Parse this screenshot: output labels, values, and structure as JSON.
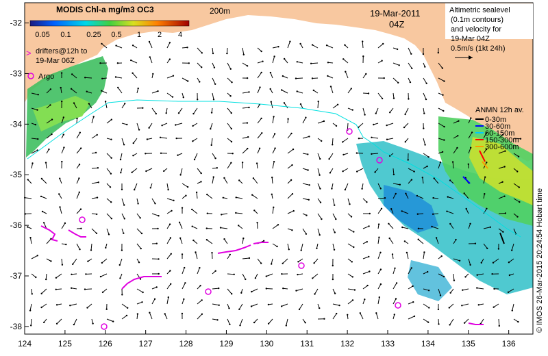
{
  "colorbar": {
    "title": "MODIS Chl-a mg/m3 OC3",
    "ticks": [
      "0.05",
      "0.1",
      "0.25",
      "0.5",
      "1",
      "2",
      "4"
    ]
  },
  "contour_label": "200m",
  "timestamp": {
    "date": "19-Mar-2011",
    "hour": "04Z"
  },
  "legend_altimetry": {
    "lines": [
      "Altimetric sealevel",
      "(0.1m contours)",
      "and velocity for",
      "19-Mar 04Z"
    ],
    "scale_label": "0.5m/s (1kt 24h)"
  },
  "legend_drifters": {
    "marker": ">",
    "lines": [
      "drifters@12h to",
      "19-Mar 06Z"
    ]
  },
  "legend_argo": {
    "label": "Argo"
  },
  "legend_anmn": {
    "title": "ANMN 12h av.",
    "items": [
      {
        "label": "0-30m",
        "color": "#000000"
      },
      {
        "label": "30-60m",
        "color": "#0000ff"
      },
      {
        "label": "60-150m",
        "color": "#00c8ff"
      },
      {
        "label": "150-300m",
        "color": "#ff0000"
      },
      {
        "label": "300-600m",
        "color": "#ff9900"
      }
    ]
  },
  "axes": {
    "x_ticks": [
      124,
      125,
      126,
      127,
      128,
      129,
      130,
      131,
      132,
      133,
      134,
      135,
      136
    ],
    "y_ticks": [
      -32,
      -33,
      -34,
      -35,
      -36,
      -37,
      -38
    ]
  },
  "credit": "© IMOS 26-Mar-2015 20:24:54 Hobart time",
  "colors": {
    "land": "#f8c8a0",
    "drifter": "#e000e0",
    "argo": "#e000e0",
    "shelf_contour": "#00e0e0"
  }
}
